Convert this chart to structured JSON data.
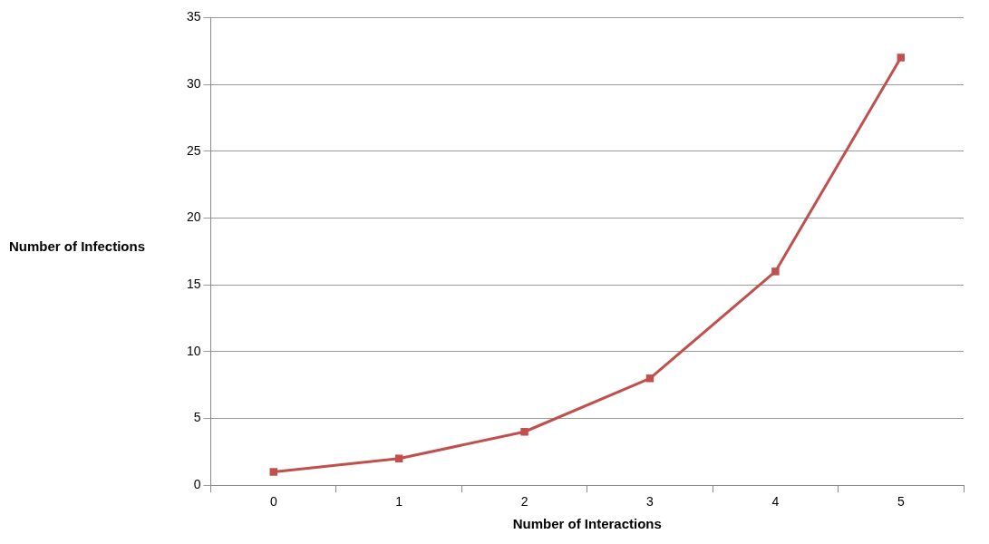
{
  "chart_data": {
    "type": "line",
    "xlabel": "Number of Interactions",
    "ylabel": "Number of Infections",
    "categories": [
      "0",
      "1",
      "2",
      "3",
      "4",
      "5"
    ],
    "series": [
      {
        "color": "#c0504d",
        "values": [
          1,
          2,
          4,
          8,
          16,
          32
        ]
      }
    ],
    "ylim": [
      0,
      35
    ],
    "yticks": [
      0,
      5,
      10,
      15,
      20,
      25,
      30,
      35
    ],
    "grid": "y",
    "legend": false,
    "marker": "square",
    "line_style": "solid"
  }
}
